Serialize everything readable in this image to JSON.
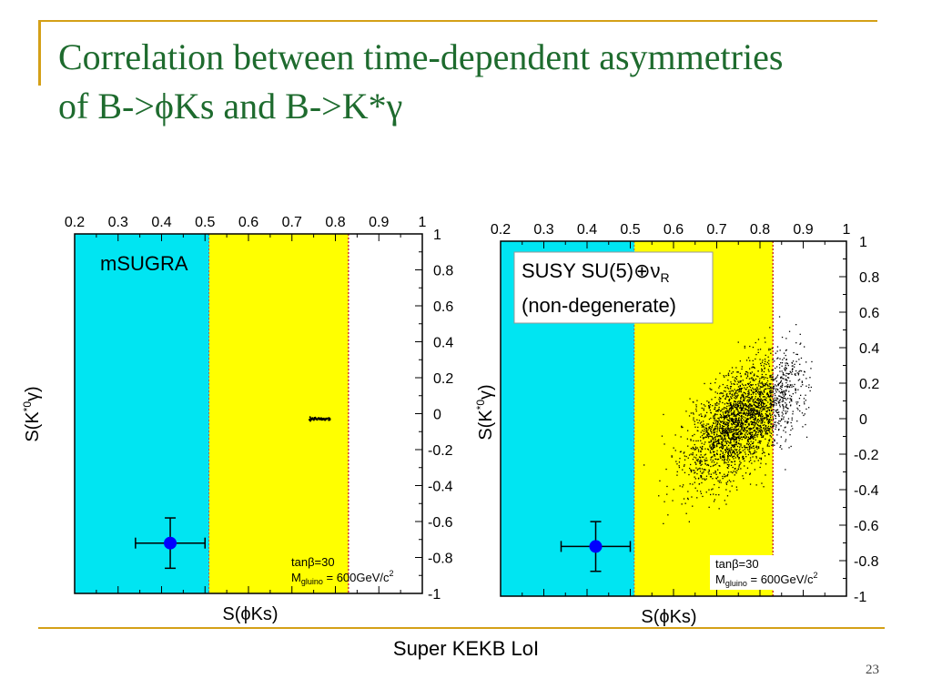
{
  "slide": {
    "title_line1": "Correlation between time-dependent asymmetries",
    "title_line2": "of B->ϕKs and B->K*γ",
    "footer": "Super KEKB LoI",
    "page_number": "23",
    "accent_color": "#D4A017",
    "title_color": "#1E6B2E"
  },
  "chart_data": [
    {
      "type": "scatter",
      "label": "mSUGRA",
      "xlabel": "S(ϕKs)",
      "ylabel": "S(K*0γ)",
      "xlim": [
        0.2,
        1.0
      ],
      "ylim": [
        -1.0,
        1.0
      ],
      "x_ticks": [
        "0.2",
        "0.3",
        "0.4",
        "0.5",
        "0.6",
        "0.7",
        "0.8",
        "0.9",
        "1"
      ],
      "y_ticks": [
        "1",
        "0.8",
        "0.6",
        "0.4",
        "0.2",
        "0",
        "-0.2",
        "-0.4",
        "-0.6",
        "-0.8",
        "-1"
      ],
      "bands": [
        {
          "from": 0.2,
          "to": 0.51,
          "color": "#00E5F2"
        },
        {
          "from": 0.51,
          "to": 0.83,
          "color": "#FFFF00"
        }
      ],
      "points_description": "narrow horizontal cluster",
      "cluster": {
        "x_from": 0.74,
        "x_to": 0.79,
        "y": -0.03
      },
      "measurement": {
        "x": 0.42,
        "y": -0.72,
        "xerr": [
          0.08,
          0.08
        ],
        "yerr": [
          0.14,
          0.14
        ],
        "color": "#0000FF"
      },
      "annotation_line1": "tanβ=30",
      "annotation_line2": "M",
      "annotation_sub": "gluino",
      "annotation_rest": " = 600GeV/c",
      "annotation_sup": "2"
    },
    {
      "type": "scatter",
      "label_line1": "SUSY SU(5)⊕ν",
      "label_sub": "R",
      "label_line2": "(non-degenerate)",
      "xlabel": "S(ϕKs)",
      "ylabel": "S(K*0γ)",
      "xlim": [
        0.2,
        1.0
      ],
      "ylim": [
        -1.0,
        1.0
      ],
      "x_ticks": [
        "0.2",
        "0.3",
        "0.4",
        "0.5",
        "0.6",
        "0.7",
        "0.8",
        "0.9",
        "1"
      ],
      "y_ticks": [
        "1",
        "0.8",
        "0.6",
        "0.4",
        "0.2",
        "0",
        "-0.2",
        "-0.4",
        "-0.6",
        "-0.8",
        "-1"
      ],
      "bands": [
        {
          "from": 0.2,
          "to": 0.51,
          "color": "#00E5F2"
        },
        {
          "from": 0.51,
          "to": 0.83,
          "color": "#FFFF00"
        }
      ],
      "cloud": {
        "center_x": 0.76,
        "center_y": 0.0,
        "sigma_x": 0.06,
        "sigma_y": 0.13,
        "correlation": 0.6
      },
      "measurement": {
        "x": 0.42,
        "y": -0.72,
        "xerr": [
          0.08,
          0.08
        ],
        "yerr": [
          0.14,
          0.14
        ],
        "color": "#0000FF"
      },
      "annotation_line1": "tanβ=30",
      "annotation_line2": "M",
      "annotation_sub": "gluino",
      "annotation_rest": " = 600GeV/c",
      "annotation_sup": "2"
    }
  ]
}
